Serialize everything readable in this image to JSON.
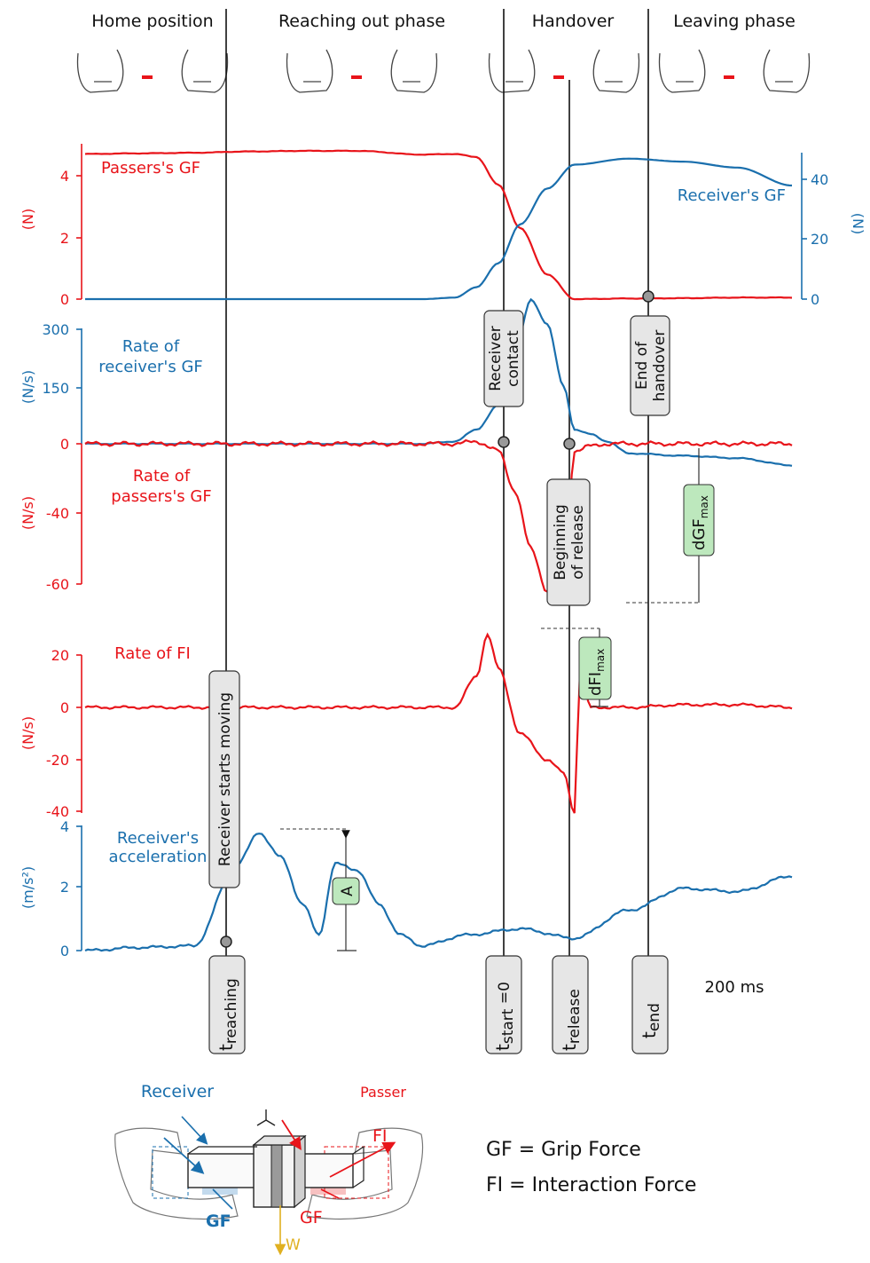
{
  "phases": [
    "Home position",
    "Reaching out phase",
    "Handover",
    "Leaving phase"
  ],
  "events": {
    "receiver_contact": "Receiver contact",
    "end_of_handover": "End of handover",
    "beginning_of_release": "Beginning of release",
    "receiver_starts_moving": "Receiver starts moving"
  },
  "time_markers": {
    "t_reaching_base": "t",
    "t_reaching_sub": "reaching",
    "t_start_base": "t",
    "t_start_sub": "start",
    "t_start_eq": " =0",
    "t_release_base": "t",
    "t_release_sub": "release",
    "t_end_base": "t",
    "t_end_sub": "end"
  },
  "scale_bar": "200 ms",
  "measures": {
    "dgf_base": "dGF",
    "dgf_sub": "max",
    "dfi_base": "dFI",
    "dfi_sub": "max",
    "a_label": "A"
  },
  "legend": {
    "gf": "GF = Grip Force",
    "fi": "FI  = Interaction Force",
    "receiver": "Receiver",
    "passer": "Passer",
    "gf_short": "GF",
    "w": "W"
  },
  "colors": {
    "passer": "#e8141a",
    "receiver": "#1a6fad",
    "green_box": "#bde8bd",
    "event_box": "#e6e6e6",
    "weight": "#e0b020"
  },
  "chart_data": [
    {
      "type": "line",
      "x": [
        0,
        100,
        200,
        300,
        400,
        500,
        620,
        680,
        720,
        760,
        800,
        850,
        900,
        1000,
        1100,
        1200,
        1300
      ],
      "series": [
        {
          "name": "Passers's GF",
          "axis": "left",
          "unit": "(N)",
          "values": [
            4.7,
            4.72,
            4.74,
            4.78,
            4.8,
            4.8,
            4.68,
            4.7,
            4.6,
            3.7,
            2.3,
            0.8,
            0.0,
            0.02,
            0.03,
            0.05,
            0.05
          ]
        },
        {
          "name": "Receiver's GF",
          "axis": "right",
          "unit": "(N)",
          "values": [
            0,
            0,
            0,
            0,
            0,
            0,
            0,
            0.5,
            4,
            12,
            25,
            37,
            45,
            47,
            46,
            44,
            38
          ]
        }
      ],
      "yticks_left": [
        "0",
        "2",
        "4"
      ],
      "yticks_right": [
        "0",
        "20",
        "40"
      ],
      "ylim_left": [
        0,
        4.8
      ],
      "ylim_right": [
        0,
        49
      ],
      "ylabel_left": "(N)",
      "ylabel_right": "(N)"
    },
    {
      "type": "line",
      "x": [
        0,
        620,
        680,
        720,
        760,
        790,
        820,
        850,
        880,
        900,
        930,
        960,
        1000,
        1100,
        1200,
        1300
      ],
      "series": [
        {
          "name": "Rate of receiver's GF",
          "axis": "top",
          "unit": "(N/s)",
          "values": [
            0,
            0,
            5,
            30,
            80,
            190,
            300,
            250,
            120,
            30,
            20,
            5,
            -20,
            -25,
            -30,
            -45
          ]
        },
        {
          "name": "Rate of passers's GF",
          "axis": "bottom",
          "unit": "(N/s)",
          "values": [
            0,
            0,
            0,
            1,
            -3,
            -20,
            -45,
            -63,
            -62,
            -3,
            -1,
            0,
            0,
            0,
            0,
            0
          ]
        }
      ],
      "yticks_top": [
        "0",
        "150",
        "300"
      ],
      "yticks_bottom": [
        "0",
        "-40",
        "-60"
      ],
      "ylabel_top": "(N/s)",
      "ylabel_bottom": "(N/s)"
    },
    {
      "type": "line",
      "x": [
        0,
        300,
        600,
        680,
        720,
        740,
        760,
        800,
        850,
        880,
        900,
        910,
        930,
        1000,
        1100,
        1200,
        1300
      ],
      "series": [
        {
          "name": "Rate of FI",
          "unit": "(N/s)",
          "values": [
            0,
            0,
            0,
            0,
            12,
            28,
            15,
            -10,
            -20,
            -25,
            -40,
            13,
            0,
            0,
            1,
            1,
            0
          ]
        }
      ],
      "yticks": [
        "20",
        "0",
        "-20",
        "-40"
      ],
      "ylabel": "(N/s)",
      "ylim": [
        -40,
        28
      ]
    },
    {
      "type": "line",
      "x": [
        0,
        100,
        200,
        280,
        320,
        360,
        400,
        430,
        460,
        500,
        540,
        580,
        620,
        700,
        800,
        900,
        1000,
        1100,
        1200,
        1300
      ],
      "series": [
        {
          "name": "Receiver's acceleration",
          "unit": "(m/s²)",
          "values": [
            0,
            0.1,
            0.15,
            2.8,
            3.8,
            3.0,
            1.5,
            0.5,
            2.8,
            2.6,
            1.5,
            0.5,
            0.15,
            0.5,
            0.7,
            0.4,
            1.3,
            2.0,
            1.9,
            2.4
          ]
        }
      ],
      "yticks": [
        "0",
        "2",
        "4"
      ],
      "ylabel": "(m/s²)",
      "ylim": [
        0,
        4
      ]
    }
  ]
}
